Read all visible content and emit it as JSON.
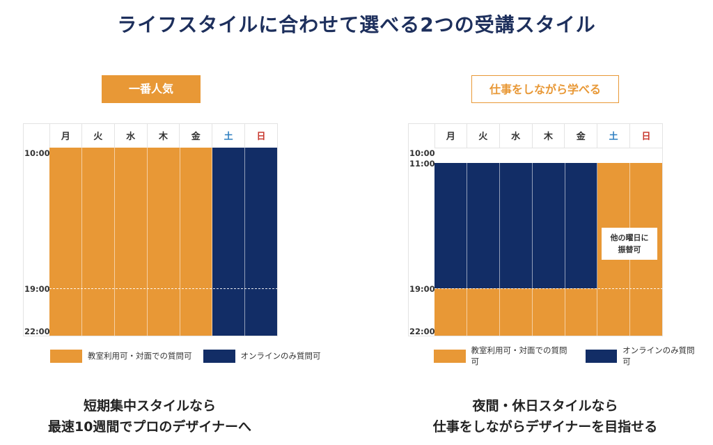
{
  "title": "ライフスタイルに合わせて選べる2つの受講スタイル",
  "days": [
    "月",
    "火",
    "水",
    "木",
    "金",
    "土",
    "日"
  ],
  "left": {
    "badge": "一番人気",
    "times": {
      "start": "10:00",
      "mid": "19:00",
      "end": "22:00"
    },
    "caption_line1": "短期集中スタイルなら",
    "caption_line2": "最速10週間でプロのデザイナーへ"
  },
  "right": {
    "badge": "仕事をしながら学べる",
    "times": {
      "start": "10:00",
      "second": "11:00",
      "mid": "19:00",
      "end": "22:00"
    },
    "note_line1": "他の曜日に",
    "note_line2": "振替可",
    "caption_line1": "夜間・休日スタイルなら",
    "caption_line2": "仕事をしながらデザイナーを目指せる"
  },
  "legend": {
    "classroom": "教室利用可・対面での質問可",
    "online": "オンラインのみ質問可"
  },
  "colors": {
    "orange": "#e89836",
    "navy": "#122d66",
    "title": "#1d2f5c"
  }
}
